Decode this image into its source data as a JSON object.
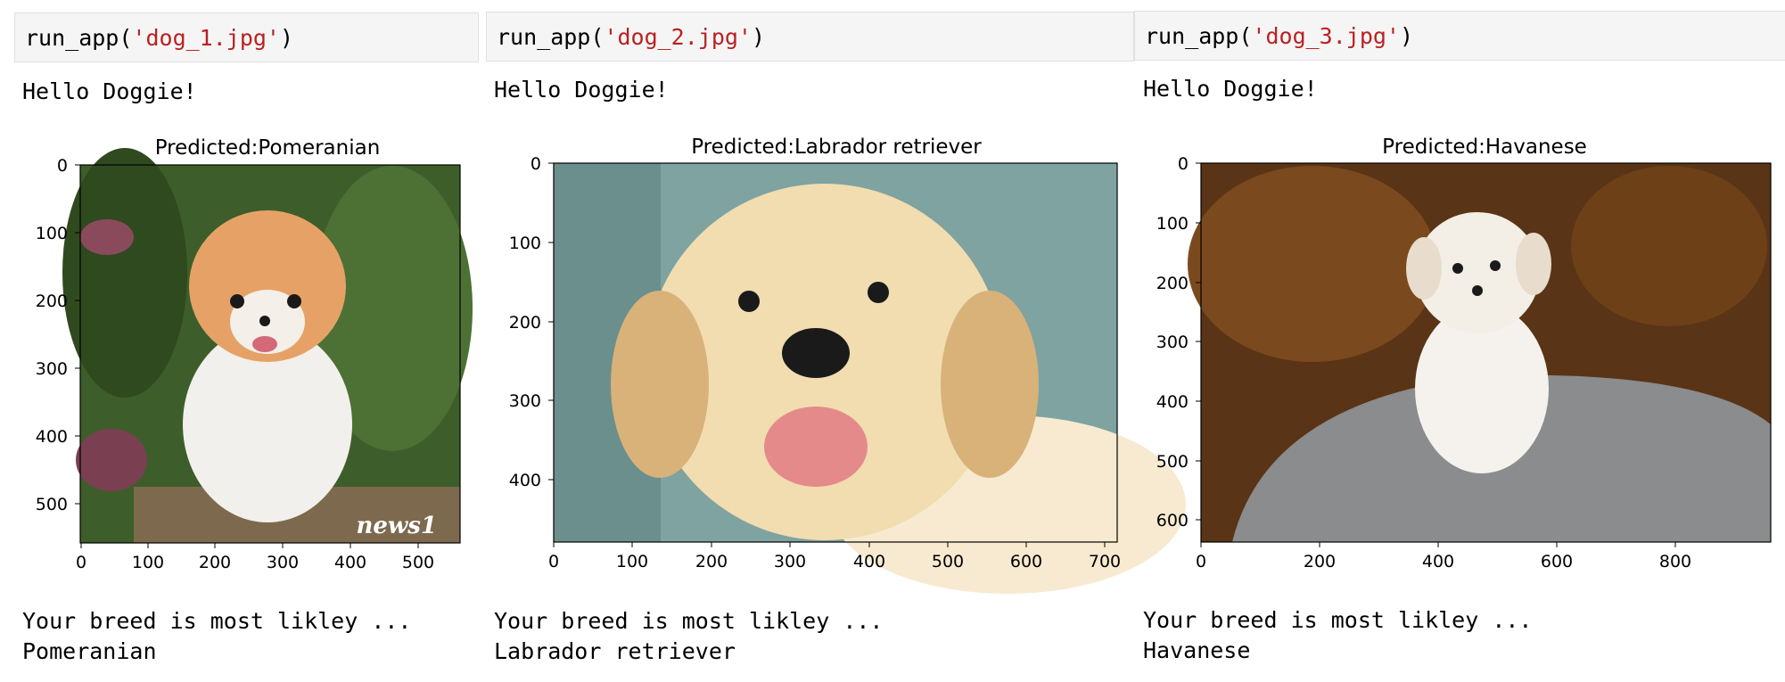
{
  "cells": [
    {
      "code": {
        "fn": "run_app(",
        "arg": "'dog_1.jpg'",
        "close": ")"
      },
      "greeting": "Hello Doggie!",
      "plot_title": "Predicted:Pomeranian",
      "x_ticks": [
        "0",
        "100",
        "200",
        "300",
        "400",
        "500"
      ],
      "y_ticks": [
        "0",
        "100",
        "200",
        "300",
        "400",
        "500"
      ],
      "result_line1": "Your breed is most likley ...",
      "result_line2": "Pomeranian",
      "photo_watermark": "news1",
      "photo_colors": {
        "bg": "#3d5e2a",
        "fur": "#f2f0ec",
        "head": "#e6a266",
        "ground": "#7d6a4e"
      }
    },
    {
      "code": {
        "fn": "run_app(",
        "arg": "'dog_2.jpg'",
        "close": ")"
      },
      "greeting": "Hello Doggie!",
      "plot_title": "Predicted:Labrador retriever",
      "x_ticks": [
        "0",
        "100",
        "200",
        "300",
        "400",
        "500",
        "600",
        "700"
      ],
      "y_ticks": [
        "0",
        "100",
        "200",
        "300",
        "400"
      ],
      "result_line1": "Your breed is most likley ...",
      "result_line2": "Labrador retriever",
      "photo_colors": {
        "bg": "#7fa3a0",
        "fur": "#f1ddb0",
        "ear": "#d9b27a",
        "tongue": "#e58a8a"
      }
    },
    {
      "code": {
        "fn": "run_app(",
        "arg": "'dog_3.jpg'",
        "close": ")"
      },
      "greeting": "Hello Doggie!",
      "plot_title": "Predicted:Havanese",
      "x_ticks": [
        "0",
        "200",
        "400",
        "600",
        "800"
      ],
      "y_ticks": [
        "0",
        "100",
        "200",
        "300",
        "400",
        "500",
        "600"
      ],
      "result_line1": "Your breed is most likley ...",
      "result_line2": "Havanese",
      "photo_colors": {
        "bg": "#5a3416",
        "rock": "#8a8c8e",
        "fur": "#f5f2ee"
      }
    }
  ]
}
